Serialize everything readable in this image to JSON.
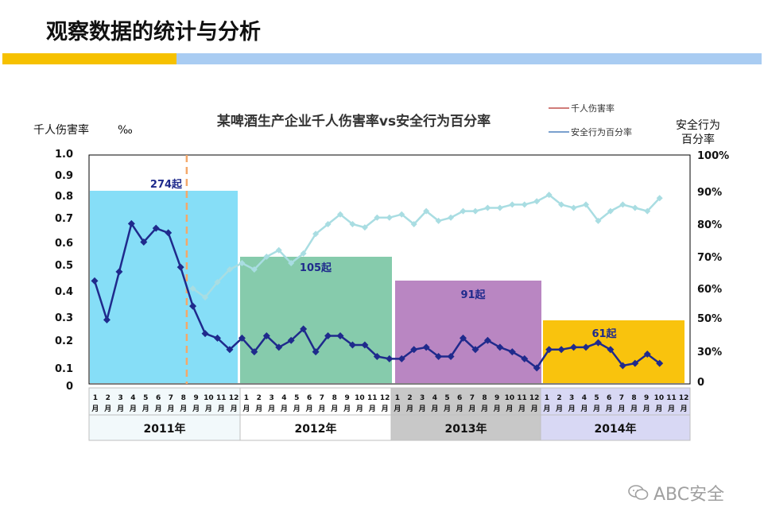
{
  "slide": {
    "title": "观察数据的统计与分析",
    "watermark": "ABC安全",
    "accent_colors": [
      "#f6c100",
      "#a9ccf2"
    ]
  },
  "chart_data": {
    "type": "line",
    "title": "某啤酒生产企业千人伤害率vs安全行为百分率",
    "ylabel_left": "千人伤害率",
    "ylabel_left_unit": "‰",
    "ylabel_right": [
      "安全行为",
      "百分率"
    ],
    "legend": [
      {
        "name": "千人伤害率",
        "color": "#c0504d"
      },
      {
        "name": "安全行为百分率",
        "color": "#4f81bd"
      }
    ],
    "left_axis": {
      "ticks": [
        "0",
        "0.1",
        "0.2",
        "0.3",
        "0.4",
        "0.5",
        "0.6",
        "0.7",
        "0.8",
        "0.9",
        "1.0"
      ],
      "ylim": [
        0,
        1.0
      ]
    },
    "right_axis": {
      "ticks": [
        "0",
        "30%",
        "50%",
        "60%",
        "70%",
        "80%",
        "90%",
        "100%"
      ]
    },
    "months": [
      "1\n月",
      "2\n月",
      "3\n月",
      "4\n月",
      "5\n月",
      "6\n月",
      "7\n月",
      "8\n月",
      "9\n月",
      "10\n月",
      "11\n月",
      "12\n月"
    ],
    "years": [
      {
        "label": "2011年",
        "incidents": "274起",
        "fill": "#7fdcf7"
      },
      {
        "label": "2012年",
        "incidents": "105起",
        "fill": "#7fc8a8"
      },
      {
        "label": "2013年",
        "incidents": "91起",
        "fill": "#b57fbf"
      },
      {
        "label": "2014年",
        "incidents": "61起",
        "fill": "#f9c000"
      }
    ],
    "series": [
      {
        "name": "千人伤害率",
        "color": "#1f2a8c",
        "values": [
          0.45,
          0.28,
          0.49,
          0.7,
          0.62,
          0.68,
          0.66,
          0.51,
          0.34,
          0.22,
          0.2,
          0.15,
          0.2,
          0.14,
          0.21,
          0.16,
          0.19,
          0.24,
          0.14,
          0.21,
          0.21,
          0.17,
          0.17,
          0.12,
          0.11,
          0.11,
          0.15,
          0.16,
          0.12,
          0.12,
          0.2,
          0.15,
          0.19,
          0.16,
          0.14,
          0.11,
          0.07,
          0.15,
          0.15,
          0.16,
          0.16,
          0.18,
          0.15,
          0.08,
          0.09,
          0.13,
          0.09
        ]
      },
      {
        "name": "安全行为百分率",
        "color": "#a9dde2",
        "x_start": 8,
        "values": [
          60,
          57,
          62,
          66,
          68,
          66,
          70,
          72,
          68,
          71,
          77,
          80,
          83,
          80,
          79,
          82,
          82,
          83,
          80,
          84,
          81,
          82,
          84,
          84,
          85,
          85,
          86,
          86,
          87,
          89,
          86,
          85,
          86,
          81,
          84,
          86,
          85,
          84,
          88
        ]
      }
    ],
    "divider_after_month": 8,
    "grid": false,
    "legend_position": "top-right"
  }
}
